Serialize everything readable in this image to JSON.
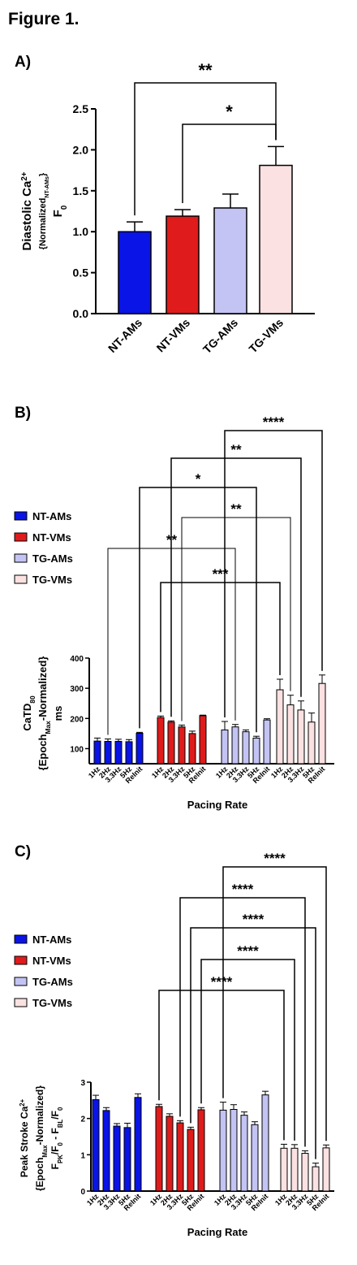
{
  "figure_title": "Figure 1.",
  "colors": {
    "nt_ams": "#0a14e6",
    "nt_vms": "#e01b1b",
    "tg_ams": "#c3c3f4",
    "tg_vms": "#fbe1e1",
    "outline": "#000000"
  },
  "chart_data": [
    {
      "panel": "A)",
      "type": "bar",
      "categories": [
        "NT-AMs",
        "NT-VMs",
        "TG-AMs",
        "TG-VMs"
      ],
      "values": [
        1.0,
        1.19,
        1.29,
        1.81
      ],
      "errors": [
        0.12,
        0.08,
        0.17,
        0.23
      ],
      "colors": [
        "#0a14e6",
        "#e01b1b",
        "#c3c3f4",
        "#fbe1e1"
      ],
      "ylabel": [
        "Diastolic Ca2+",
        "{NormalizedNT-AMs}",
        "F0"
      ],
      "yticks": [
        "0.0",
        "0.5",
        "1.0",
        "1.5",
        "2.0",
        "2.5"
      ],
      "ylim": [
        0,
        2.5
      ],
      "significance": [
        {
          "from": "NT-AMs",
          "to": "TG-VMs",
          "label": "**"
        },
        {
          "from": "NT-VMs",
          "to": "TG-VMs",
          "label": "*"
        }
      ]
    },
    {
      "panel": "B)",
      "type": "bar",
      "groups": [
        "NT-AMs",
        "NT-VMs",
        "TG-AMs",
        "TG-VMs"
      ],
      "categories": [
        "1Hz",
        "2Hz",
        "3.3Hz",
        "5Hz",
        "ReInit"
      ],
      "series": [
        {
          "name": "NT-AMs",
          "values": [
            125,
            124,
            124,
            123,
            151
          ],
          "errors": [
            10,
            8,
            7,
            7,
            3
          ]
        },
        {
          "name": "NT-VMs",
          "values": [
            203,
            188,
            172,
            150,
            209
          ],
          "errors": [
            5,
            4,
            6,
            8,
            2
          ]
        },
        {
          "name": "TG-AMs",
          "values": [
            162,
            172,
            156,
            135,
            195
          ],
          "errors": [
            28,
            8,
            6,
            6,
            4
          ]
        },
        {
          "name": "TG-VMs",
          "values": [
            295,
            245,
            228,
            188,
            316
          ],
          "errors": [
            35,
            32,
            30,
            30,
            28
          ]
        }
      ],
      "legend": [
        "NT-AMs",
        "NT-VMs",
        "TG-AMs",
        "TG-VMs"
      ],
      "ylabel": [
        "CaTD80",
        "{EpochMax-Normalized}",
        "ms"
      ],
      "xlabel": "Pacing Rate",
      "yticks": [
        "100",
        "200",
        "300",
        "400"
      ],
      "ylim": [
        50,
        400
      ],
      "significance": [
        {
          "from": "TG-AMs 1Hz",
          "to": "TG-VMs ReInit",
          "label": "****"
        },
        {
          "from": "NT-VMs 2Hz",
          "to": "TG-VMs 3.3Hz",
          "label": "**"
        },
        {
          "from": "NT-AMs ReInit",
          "to": "TG-AMs 5Hz",
          "label": "*"
        },
        {
          "from": "NT-VMs 3.3Hz",
          "to": "TG-VMs 2Hz",
          "label": "**"
        },
        {
          "from": "NT-AMs 2Hz",
          "to": "TG-AMs 2Hz",
          "label": "**"
        },
        {
          "from": "NT-VMs 1Hz",
          "to": "TG-VMs 1Hz",
          "label": "***"
        }
      ]
    },
    {
      "panel": "C)",
      "type": "bar",
      "groups": [
        "NT-AMs",
        "NT-VMs",
        "TG-AMs",
        "TG-VMs"
      ],
      "categories": [
        "1Hz",
        "2Hz",
        "3.3Hz",
        "5Hz",
        "ReInit"
      ],
      "series": [
        {
          "name": "NT-AMs",
          "values": [
            2.52,
            2.22,
            1.79,
            1.75,
            2.58
          ],
          "errors": [
            0.12,
            0.08,
            0.07,
            0.12,
            0.1
          ]
        },
        {
          "name": "NT-VMs",
          "values": [
            2.33,
            2.06,
            1.88,
            1.7,
            2.24
          ],
          "errors": [
            0.06,
            0.07,
            0.06,
            0.06,
            0.06
          ]
        },
        {
          "name": "TG-AMs",
          "values": [
            2.23,
            2.25,
            2.09,
            1.83,
            2.65
          ],
          "errors": [
            0.22,
            0.13,
            0.09,
            0.08,
            0.1
          ]
        },
        {
          "name": "TG-VMs",
          "values": [
            1.18,
            1.18,
            1.04,
            0.67,
            1.19
          ],
          "errors": [
            0.11,
            0.1,
            0.07,
            0.1,
            0.08
          ]
        }
      ],
      "legend": [
        "NT-AMs",
        "NT-VMs",
        "TG-AMs",
        "TG-VMs"
      ],
      "ylabel": [
        "Peak Stroke Ca2+",
        "{EpochMax-Normalized}",
        "FPK/F0 - FBL/F0"
      ],
      "xlabel": "Pacing Rate",
      "yticks": [
        "0",
        "1",
        "2",
        "3"
      ],
      "ylim": [
        0,
        3
      ],
      "significance": [
        {
          "from": "TG-AMs 1Hz",
          "to": "TG-VMs ReInit",
          "label": "****"
        },
        {
          "from": "NT-VMs 3.3Hz",
          "to": "TG-VMs 3.3Hz",
          "label": "****"
        },
        {
          "from": "NT-VMs 5Hz",
          "to": "TG-VMs 5Hz",
          "label": "****"
        },
        {
          "from": "NT-VMs ReInit",
          "to": "TG-VMs 2Hz",
          "label": "****"
        },
        {
          "from": "NT-VMs 1Hz",
          "to": "TG-VMs 1Hz",
          "label": "****"
        }
      ]
    }
  ]
}
